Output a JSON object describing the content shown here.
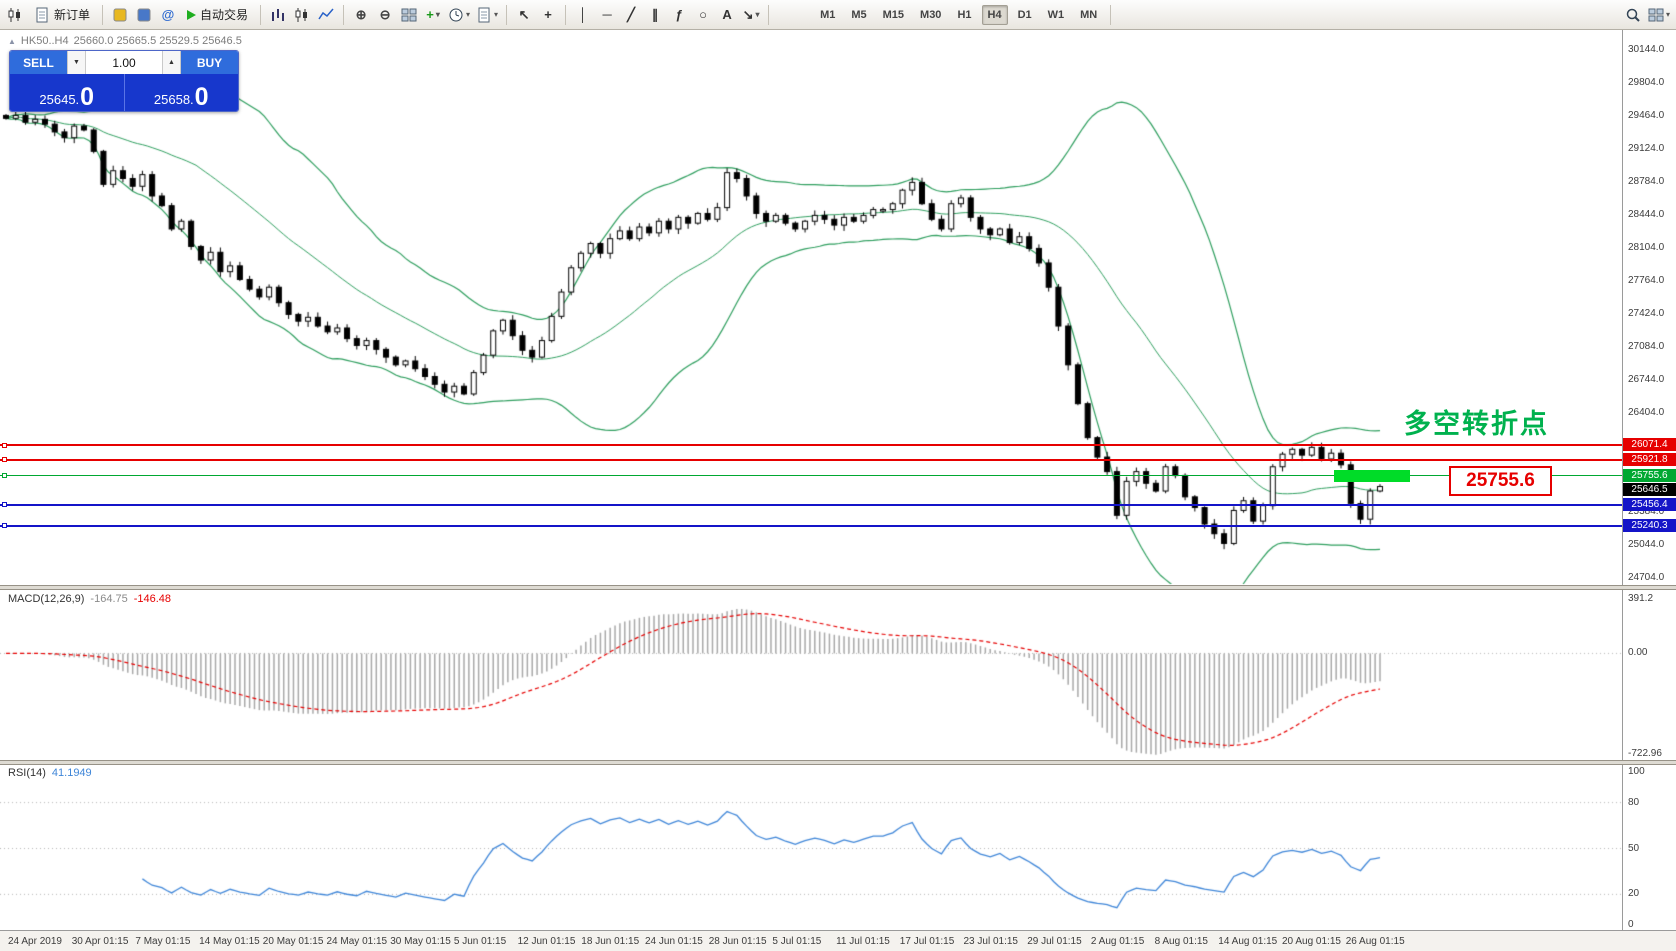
{
  "toolbar": {
    "new_order_label": "新订单",
    "autotrade_label": "自动交易",
    "items": [
      {
        "name": "chart-window-icon",
        "kind": "candles"
      },
      {
        "name": "new-order-button",
        "kind": "labeled",
        "icon": "doc",
        "label_key": "new_order_label"
      },
      {
        "kind": "sep"
      },
      {
        "name": "autochartist-icon",
        "kind": "swatch",
        "color": "#e8b820"
      },
      {
        "name": "market-icon",
        "kind": "swatch",
        "color": "#4878c8"
      },
      {
        "name": "community-icon",
        "kind": "glyph",
        "glyph": "@",
        "color": "#2f6bd0"
      },
      {
        "name": "autotrade-button",
        "kind": "play",
        "label_key": "autotrade_label"
      },
      {
        "kind": "sep"
      },
      {
        "name": "chart-bars-icon",
        "kind": "bars"
      },
      {
        "name": "chart-candles-icon",
        "kind": "candles"
      },
      {
        "name": "chart-line-icon",
        "kind": "linechart"
      },
      {
        "kind": "sep"
      },
      {
        "name": "zoom-in-icon",
        "kind": "glyph",
        "glyph": "⊕",
        "color": "#444"
      },
      {
        "name": "zoom-out-icon",
        "kind": "glyph",
        "glyph": "⊖",
        "color": "#444"
      },
      {
        "name": "tile-windows-icon",
        "kind": "grid"
      },
      {
        "name": "indicators-icon",
        "kind": "glyph",
        "glyph": "+",
        "color": "#1a9a1a",
        "caret": true
      },
      {
        "name": "periods-icon",
        "kind": "clock",
        "caret": true
      },
      {
        "name": "templates-icon",
        "kind": "doc",
        "caret": true
      },
      {
        "kind": "sep"
      },
      {
        "name": "cursor-icon",
        "kind": "glyph",
        "glyph": "↖",
        "color": "#333"
      },
      {
        "name": "crosshair-icon",
        "kind": "glyph",
        "glyph": "+",
        "color": "#333"
      },
      {
        "kind": "sep"
      },
      {
        "name": "vertical-line-icon",
        "kind": "glyph",
        "glyph": "│",
        "color": "#333"
      },
      {
        "name": "horizontal-line-icon",
        "kind": "glyph",
        "glyph": "─",
        "color": "#333"
      },
      {
        "name": "trendline-icon",
        "kind": "glyph",
        "glyph": "╱",
        "color": "#333"
      },
      {
        "name": "channel-icon",
        "kind": "glyph",
        "glyph": "∥",
        "color": "#333"
      },
      {
        "name": "fibonacci-icon",
        "kind": "glyph",
        "glyph": "ƒ",
        "color": "#333"
      },
      {
        "name": "shapes-icon",
        "kind": "glyph",
        "glyph": "○",
        "color": "#333"
      },
      {
        "name": "text-icon",
        "kind": "glyph",
        "glyph": "A",
        "color": "#333"
      },
      {
        "name": "arrows-icon",
        "kind": "glyph",
        "glyph": "↘",
        "color": "#333",
        "caret": true
      },
      {
        "kind": "sep"
      },
      {
        "kind": "space",
        "w": 36
      },
      {
        "kind": "timeframes"
      },
      {
        "kind": "sep"
      }
    ],
    "right_items": [
      {
        "name": "search-icon",
        "kind": "mag"
      },
      {
        "name": "chart-layout-icon",
        "kind": "grid",
        "caret": true
      }
    ],
    "timeframes": [
      {
        "label": "M1"
      },
      {
        "label": "M5"
      },
      {
        "label": "M15"
      },
      {
        "label": "M30"
      },
      {
        "label": "H1"
      },
      {
        "label": "H4",
        "active": true
      },
      {
        "label": "D1"
      },
      {
        "label": "W1"
      },
      {
        "label": "MN"
      }
    ]
  },
  "symbol_header": {
    "symbol": "HK50..H4",
    "ohlc": "25660.0 25665.5 25529.5 25646.5"
  },
  "one_click": {
    "sell_label": "SELL",
    "buy_label": "BUY",
    "volume": "1.00",
    "sell_price": "25645.",
    "sell_price_big": "0",
    "buy_price": "25658.",
    "buy_price_big": "0"
  },
  "annotations": {
    "turning_point": "多空转折点",
    "price_callout": "25755.6"
  },
  "price_scale": {
    "tick_labels": [
      "30144.0",
      "29804.0",
      "29464.0",
      "29124.0",
      "28784.0",
      "28444.0",
      "28104.0",
      "27764.0",
      "27424.0",
      "27084.0",
      "26744.0",
      "26404.0",
      "25384.0",
      "25044.0",
      "24704.0"
    ]
  },
  "price_lines": [
    {
      "label": "26071.4",
      "price": 26071.4,
      "color": "#e60000",
      "thickness": 2
    },
    {
      "label": "25921.8",
      "price": 25921.8,
      "color": "#e60000",
      "thickness": 2
    },
    {
      "label": "25755.6",
      "price": 25755.6,
      "color": "#00a832",
      "thickness": 1
    },
    {
      "label": "25456.4",
      "price": 25456.4,
      "color": "#1414c8",
      "thickness": 2
    },
    {
      "label": "25240.3",
      "price": 25240.3,
      "color": "#1414c8",
      "thickness": 2
    }
  ],
  "current_price": {
    "label": "25646.5",
    "price": 25646.5,
    "bg": "#000000"
  },
  "chart_data": {
    "type": "candlestick",
    "symbol": "HK50",
    "timeframe": "H4",
    "title": "HK50..H4",
    "y_axis": {
      "min": 24704,
      "max": 30144,
      "step": 340
    },
    "closes": [
      29440,
      29470,
      29400,
      29430,
      29380,
      29300,
      29240,
      29360,
      29320,
      29100,
      28760,
      28900,
      28820,
      28740,
      28860,
      28640,
      28540,
      28300,
      28380,
      28120,
      27980,
      28060,
      27860,
      27920,
      27780,
      27680,
      27600,
      27700,
      27540,
      27420,
      27350,
      27390,
      27300,
      27240,
      27280,
      27170,
      27100,
      27150,
      27060,
      26980,
      26900,
      26940,
      26860,
      26780,
      26700,
      26620,
      26680,
      26600,
      26820,
      27000,
      27250,
      27360,
      27200,
      27050,
      26980,
      27150,
      27400,
      27650,
      27900,
      28050,
      28150,
      28050,
      28200,
      28280,
      28200,
      28320,
      28260,
      28380,
      28300,
      28420,
      28360,
      28460,
      28400,
      28520,
      28880,
      28820,
      28640,
      28460,
      28380,
      28440,
      28360,
      28300,
      28380,
      28440,
      28400,
      28340,
      28420,
      28380,
      28440,
      28500,
      28500,
      28560,
      28700,
      28780,
      28560,
      28400,
      28300,
      28560,
      28620,
      28420,
      28300,
      28240,
      28300,
      28160,
      28220,
      28100,
      27950,
      27700,
      27300,
      26900,
      26500,
      26150,
      25950,
      25800,
      25350,
      25700,
      25800,
      25680,
      25600,
      25850,
      25760,
      25540,
      25430,
      25260,
      25160,
      25060,
      25400,
      25500,
      25290,
      25450,
      25850,
      25980,
      26030,
      25970,
      26050,
      25930,
      25990,
      25870,
      25470,
      25310,
      25600,
      25646.5
    ],
    "bollinger": {
      "period": 20,
      "deviation": 2,
      "band_color": "#2e9e5e"
    },
    "candle_colors": {
      "up": "#ffffff",
      "down": "#000000",
      "outline": "#000000"
    },
    "x_labels": [
      "24 Apr 2019",
      "30 Apr 01:15",
      "7 May 01:15",
      "14 May 01:15",
      "20 May 01:15",
      "24 May 01:15",
      "30 May 01:15",
      "5 Jun 01:15",
      "12 Jun 01:15",
      "18 Jun 01:15",
      "24 Jun 01:15",
      "28 Jun 01:15",
      "5 Jul 01:15",
      "11 Jul 01:15",
      "17 Jul 01:15",
      "23 Jul 01:15",
      "29 Jul 01:15",
      "2 Aug 01:15",
      "8 Aug 01:15",
      "14 Aug 01:15",
      "20 Aug 01:15",
      "26 Aug 01:15"
    ],
    "macd": {
      "label": "MACD(12,26,9)",
      "main": "-164.75",
      "signal": "-146.48",
      "scale": [
        {
          "text": "391.2",
          "value": 391.2
        },
        {
          "text": "0.00",
          "value": 0
        },
        {
          "text": "-722.96",
          "value": -722.96
        }
      ],
      "hist_color": "#a8a8a8",
      "signal_color": "#e60000"
    },
    "rsi": {
      "label": "RSI(14)",
      "value": "41.1949",
      "levels": [
        80,
        50,
        20
      ],
      "scale": [
        {
          "text": "100",
          "value": 100
        },
        {
          "text": "80",
          "value": 80
        },
        {
          "text": "50",
          "value": 50
        },
        {
          "text": "20",
          "value": 20
        },
        {
          "text": "0",
          "value": 0
        }
      ],
      "line_color": "#3f86d8"
    }
  }
}
